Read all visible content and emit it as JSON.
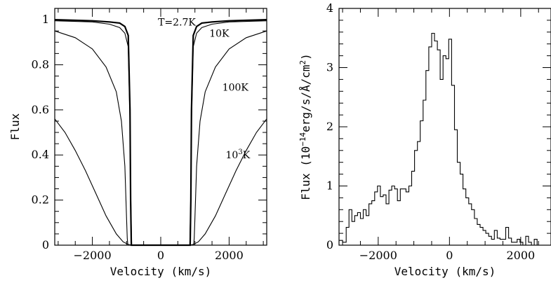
{
  "chart_data": [
    {
      "type": "line",
      "title": "",
      "xlabel": "Velocity (km/s)",
      "ylabel": "Flux",
      "xlim": [
        -3100,
        3100
      ],
      "ylim": [
        0,
        1.05
      ],
      "grid": false,
      "x_ticks": [
        {
          "value": -2000,
          "label": "−2000"
        },
        {
          "value": 0,
          "label": "0"
        },
        {
          "value": 2000,
          "label": "2000"
        }
      ],
      "y_ticks": [
        {
          "value": 0,
          "label": "0"
        },
        {
          "value": 0.2,
          "label": "0.2"
        },
        {
          "value": 0.4,
          "label": "0.4"
        },
        {
          "value": 0.6,
          "label": "0.6"
        },
        {
          "value": 0.8,
          "label": "0.8"
        },
        {
          "value": 1,
          "label": "1"
        }
      ],
      "series": [
        {
          "name": "T=2.7K",
          "x": [
            -3100,
            -2000,
            -1500,
            -1200,
            -1050,
            -950,
            -900,
            -880,
            -860,
            860,
            880,
            900,
            950,
            1050,
            1200,
            1500,
            2000,
            3100
          ],
          "y": [
            1.0,
            0.995,
            0.99,
            0.985,
            0.97,
            0.93,
            0.6,
            0.2,
            0,
            0,
            0.2,
            0.6,
            0.93,
            0.97,
            0.985,
            0.99,
            0.995,
            1.0
          ]
        },
        {
          "name": "10K",
          "x": [
            -3100,
            -2000,
            -1500,
            -1200,
            -1050,
            -950,
            -900,
            -870,
            -850,
            850,
            870,
            900,
            950,
            1050,
            1200,
            1500,
            2000,
            3100
          ],
          "y": [
            0.995,
            0.99,
            0.98,
            0.965,
            0.94,
            0.88,
            0.55,
            0.15,
            0,
            0,
            0.15,
            0.55,
            0.88,
            0.94,
            0.965,
            0.98,
            0.99,
            0.995
          ]
        },
        {
          "name": "100K",
          "x": [
            -3100,
            -2500,
            -2000,
            -1600,
            -1300,
            -1150,
            -1050,
            -1000,
            -980,
            -960,
            960,
            980,
            1000,
            1050,
            1150,
            1300,
            1600,
            2000,
            2500,
            3100
          ],
          "y": [
            0.95,
            0.92,
            0.87,
            0.79,
            0.68,
            0.55,
            0.35,
            0.12,
            0.03,
            0,
            0,
            0.03,
            0.12,
            0.35,
            0.55,
            0.68,
            0.79,
            0.87,
            0.92,
            0.95
          ]
        },
        {
          "name": "10³K",
          "x": [
            -3100,
            -2800,
            -2500,
            -2200,
            -1900,
            -1600,
            -1300,
            -1100,
            -950,
            -820,
            820,
            950,
            1100,
            1300,
            1600,
            1900,
            2200,
            2500,
            2800,
            3100
          ],
          "y": [
            0.56,
            0.5,
            0.42,
            0.33,
            0.23,
            0.13,
            0.05,
            0.015,
            0.003,
            0,
            0,
            0.003,
            0.015,
            0.05,
            0.13,
            0.23,
            0.33,
            0.42,
            0.5,
            0.56
          ]
        }
      ],
      "annotations": [
        {
          "text": "T=2.7K",
          "x": -80,
          "y": 0.99
        },
        {
          "text": "10K",
          "x": 1420,
          "y": 0.94
        },
        {
          "text": "100K",
          "x": 1800,
          "y": 0.7
        },
        {
          "text_base": "10",
          "text_sup": "3",
          "text_after": "K",
          "x": 1900,
          "y": 0.4
        }
      ]
    },
    {
      "type": "line",
      "step": true,
      "title": "",
      "xlabel": "Velocity (km/s)",
      "ylabel_parts": [
        "Flux (10",
        "−14",
        "erg/s/Å/cm",
        "2",
        ")"
      ],
      "xlim": [
        -3100,
        2850
      ],
      "ylim": [
        0,
        4
      ],
      "grid": false,
      "x_ticks": [
        {
          "value": -2000,
          "label": "−2000"
        },
        {
          "value": 0,
          "label": "0"
        },
        {
          "value": 2000,
          "label": "2000"
        }
      ],
      "y_ticks": [
        {
          "value": 0,
          "label": "0"
        },
        {
          "value": 1,
          "label": "1"
        },
        {
          "value": 2,
          "label": "2"
        },
        {
          "value": 3,
          "label": "3"
        },
        {
          "value": 4,
          "label": "4"
        }
      ],
      "series": [
        {
          "x": [
            -3100,
            -3000,
            -2900,
            -2820,
            -2740,
            -2660,
            -2580,
            -2500,
            -2420,
            -2340,
            -2260,
            -2180,
            -2100,
            -2020,
            -1940,
            -1860,
            -1780,
            -1700,
            -1620,
            -1540,
            -1460,
            -1380,
            -1300,
            -1220,
            -1140,
            -1060,
            -980,
            -900,
            -820,
            -740,
            -660,
            -580,
            -500,
            -420,
            -340,
            -260,
            -180,
            -100,
            -20,
            60,
            140,
            220,
            300,
            380,
            460,
            540,
            620,
            700,
            780,
            860,
            940,
            1020,
            1100,
            1180,
            1260,
            1340,
            1420,
            1500,
            1580,
            1660,
            1740,
            1820,
            1900,
            1980,
            2060,
            2140,
            2220,
            2300,
            2380,
            2460
          ],
          "y": [
            0.08,
            0.05,
            0.3,
            0.6,
            0.4,
            0.5,
            0.55,
            0.45,
            0.6,
            0.5,
            0.7,
            0.75,
            0.9,
            1.0,
            0.82,
            0.85,
            0.7,
            0.93,
            1.0,
            0.95,
            0.75,
            0.95,
            0.95,
            0.9,
            1.0,
            1.25,
            1.6,
            1.75,
            2.1,
            2.45,
            2.95,
            3.35,
            3.58,
            3.45,
            3.3,
            2.8,
            3.2,
            3.15,
            3.48,
            2.7,
            1.95,
            1.4,
            1.2,
            0.95,
            0.8,
            0.7,
            0.6,
            0.45,
            0.35,
            0.3,
            0.25,
            0.2,
            0.15,
            0.1,
            0.25,
            0.12,
            0.1,
            0.1,
            0.3,
            0.12,
            0.05,
            0.05,
            0.1,
            0.05,
            0.0,
            0.15,
            0.05,
            0.0,
            0.1,
            0.0
          ]
        }
      ]
    }
  ]
}
